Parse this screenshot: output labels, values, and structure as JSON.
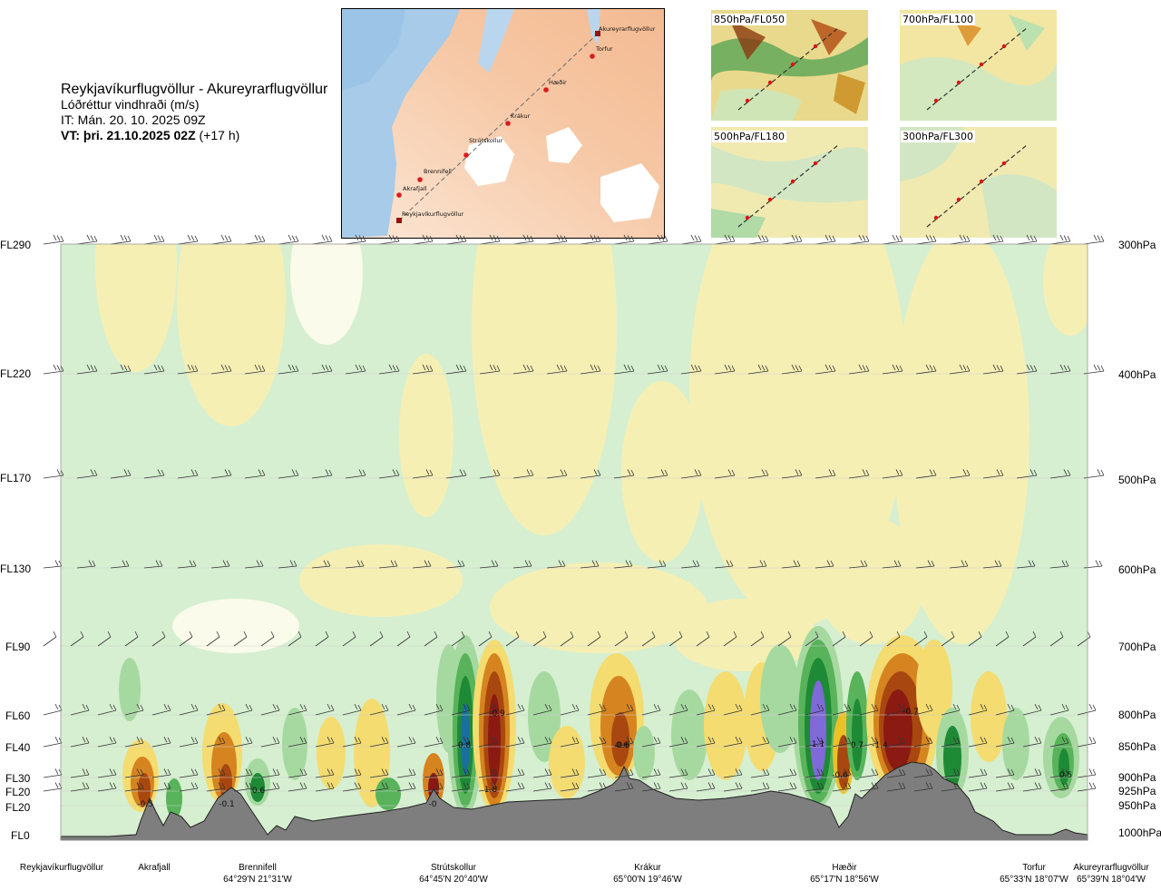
{
  "header": {
    "route": "Reykjavíkurflugvöllur - Akureyrarflugvöllur",
    "field": "Lóðréttur vindhraði (m/s)",
    "init_time": "IT: Mán. 20. 10. 2025 09Z",
    "valid_prefix": "VT: þri. 21.10.2025 02Z",
    "valid_suffix": " (+17 h)"
  },
  "map": {
    "waypoints": [
      "Akureyrarflugvöllur",
      "Torfur",
      "Hæðir",
      "Krákur",
      "Strútskollur",
      "Brennifell",
      "Akrafjall",
      "Reykjavíkurflugvöllur"
    ]
  },
  "mini_maps": [
    {
      "label": "850hPa/FL050"
    },
    {
      "label": "700hPa/FL100"
    },
    {
      "label": "500hPa/FL180"
    },
    {
      "label": "300hPa/FL300"
    }
  ],
  "chart_data": {
    "type": "heatmap",
    "title": "Lóðréttur vindhraði (m/s)",
    "xlabel": "",
    "ylabel": "",
    "grid": true,
    "levels": [
      {
        "fl": "FL290",
        "hpa": "300hPa"
      },
      {
        "fl": "FL220",
        "hpa": "400hPa"
      },
      {
        "fl": "FL170",
        "hpa": "500hPa"
      },
      {
        "fl": "FL130",
        "hpa": "600hPa"
      },
      {
        "fl": "FL90",
        "hpa": "700hPa"
      },
      {
        "fl": "FL60",
        "hpa": "800hPa"
      },
      {
        "fl": "FL40",
        "hpa": "850hPa"
      },
      {
        "fl": "FL30",
        "hpa": "900hPa"
      },
      {
        "fl": "FL20",
        "hpa": "925hPa"
      },
      {
        "fl": "FL20",
        "hpa": "950hPa"
      },
      {
        "fl": "FL0",
        "hpa": "1000hPa"
      }
    ],
    "locations": [
      {
        "name": "Reykjavíkurflugvöllur",
        "coord": ""
      },
      {
        "name": "Akrafjall",
        "coord": ""
      },
      {
        "name": "Brennifell",
        "coord": "64°29'N 21°31'W"
      },
      {
        "name": "Strútskollur",
        "coord": "64°45'N 20°40'W"
      },
      {
        "name": "Krákur",
        "coord": "65°00'N 19°46'W"
      },
      {
        "name": "Hæðir",
        "coord": "65°17'N 18°56'W"
      },
      {
        "name": "Torfur",
        "coord": "65°33'N 18°07'W"
      },
      {
        "name": "Akureyrarflugvöllur",
        "coord": "65°39'N 18°04'W"
      }
    ],
    "value_labels": [
      "-0.5",
      "-0.1",
      "0.6",
      "-0.9",
      "0.8",
      "0.6",
      "-0",
      "1.8",
      "-0.6",
      "-0.6",
      "1.1",
      "0.7",
      "-1.4",
      "-0.7",
      "0.5"
    ],
    "colors": {
      "strong_down_1": "#8a1a12",
      "strong_down_2": "#a8470f",
      "down_1": "#d5841f",
      "down_2": "#ebc128",
      "down_3": "#f4dc70",
      "weak_down": "#f6efb4",
      "neutral": "#fafbea",
      "weak_up": "#d2edcc",
      "up_1": "#a6d9a0",
      "up_2": "#58b35a",
      "up_3": "#1f8a36",
      "strong_up_1": "#1a6fa0",
      "strong_up_2": "#8069d8",
      "terrain": "#7e7e7e"
    }
  }
}
